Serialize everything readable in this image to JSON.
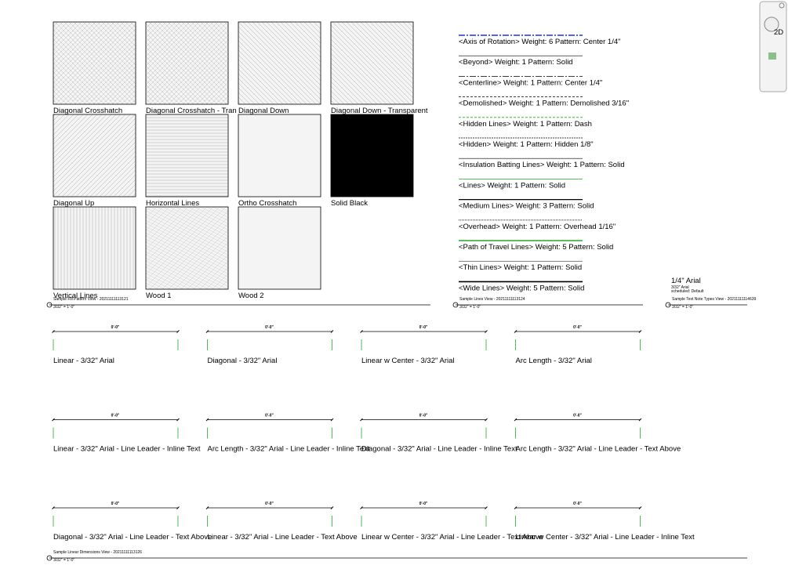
{
  "fill_patterns": {
    "swatches": [
      "Diagonal Crosshatch",
      "Diagonal Crosshatch - Tran",
      "Diagonal Down",
      "Diagonal Down - Transparent",
      "Diagonal Up",
      "Horizontal Lines",
      "Ortho Crosshatch",
      "Solid Black",
      "Vertical Lines",
      "Wood 1",
      "Wood 2"
    ],
    "view_title": "Sample Fill Pattern View - 20211111113121",
    "view_scale": "3/32\" = 1'-0\""
  },
  "line_styles": {
    "items": [
      "<Axis of Rotation>   Weight: 6   Pattern: Center 1/4\"",
      "<Beyond>   Weight: 1   Pattern: Solid",
      "<Centerline>   Weight: 1   Pattern: Center 1/4\"",
      "<Demolished>   Weight: 1   Pattern: Demolished 3/16\"",
      "<Hidden Lines>   Weight: 1   Pattern: Dash",
      "<Hidden>   Weight: 1   Pattern: Hidden 1/8\"",
      "<Insulation Batting Lines>   Weight: 1   Pattern: Solid",
      "<Lines>   Weight: 1   Pattern: Solid",
      "<Medium Lines>   Weight: 3   Pattern: Solid",
      "<Overhead>   Weight: 1   Pattern: Overhead 1/16\"",
      "<Path of Travel Lines>   Weight: 5   Pattern: Solid",
      "<Thin Lines>   Weight: 1   Pattern: Solid",
      "<Wide Lines>   Weight: 5   Pattern: Solid"
    ],
    "view_title": "Sample Lines View - 20211111113124",
    "view_scale": "3/32\" = 1'-0\""
  },
  "text_notes": {
    "note": "1/4\" Arial",
    "sub_lines": [
      "3/32\" Arial",
      "scheduled: Default"
    ],
    "view_title": "Sample Text Note Types View - 20211111114639",
    "view_scale": "3/32\" = 1'-0\""
  },
  "dimensions": {
    "dimension_text": "0'-0\"",
    "types": [
      "Linear - 3/32\" Arial",
      "Diagonal - 3/32\" Arial",
      "Linear w Center - 3/32\" Arial",
      "Arc Length - 3/32\" Arial",
      "Linear - 3/32\" Arial - Line Leader - Inline Text",
      "Arc Length - 3/32\" Arial - Line Leader - Inline Text",
      "Diagonal - 3/32\" Arial - Line Leader - Inline Text",
      "Arc Length - 3/32\" Arial - Line Leader - Text Above",
      "Diagonal - 3/32\" Arial - Line Leader - Text Above",
      "Linear - 3/32\" Arial - Line Leader - Text Above",
      "Linear w Center - 3/32\" Arial - Line Leader - Text Above",
      "Linear w Center - 3/32\" Arial - Line Leader - Inline Text"
    ],
    "view_title": "Sample Linear Dimensions View - 20211111113126",
    "view_scale": "3/32\" = 1'-0\""
  },
  "navigation_bar": {
    "wheel_label": "2D"
  }
}
